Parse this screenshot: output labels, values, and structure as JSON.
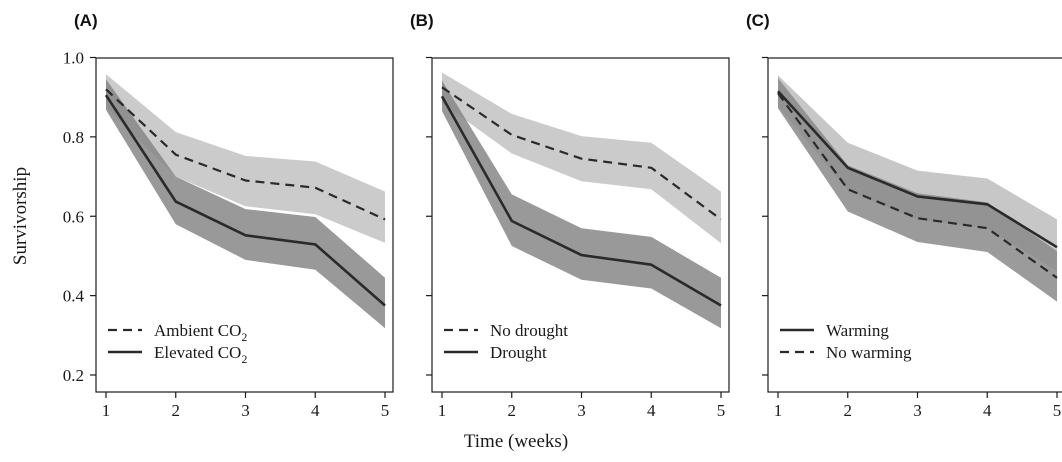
{
  "figure": {
    "ylabel": "Survivorship",
    "xlabel": "Time (weeks)"
  },
  "chart_data": [
    {
      "type": "line",
      "panel_label": "(A)",
      "x": [
        1,
        2,
        3,
        4,
        5
      ],
      "xticks": [
        "1",
        "2",
        "3",
        "4",
        "5"
      ],
      "ylim": [
        0.17,
        1.0
      ],
      "yticks": [
        "0.2",
        "0.4",
        "0.6",
        "0.8",
        "1.0"
      ],
      "legend_position": "bottom-left",
      "series": [
        {
          "name": "Ambient CO₂",
          "style": "dashed",
          "band_color": "#c2c2c2",
          "values": [
            0.92,
            0.755,
            0.69,
            0.672,
            0.592
          ],
          "lower": [
            0.875,
            0.7,
            0.625,
            0.605,
            0.533
          ],
          "upper": [
            0.958,
            0.812,
            0.752,
            0.738,
            0.662
          ]
        },
        {
          "name": "Elevated CO₂",
          "style": "solid",
          "band_color": "#878787",
          "values": [
            0.905,
            0.637,
            0.552,
            0.529,
            0.375
          ],
          "lower": [
            0.868,
            0.58,
            0.49,
            0.465,
            0.318
          ],
          "upper": [
            0.945,
            0.7,
            0.618,
            0.598,
            0.445
          ]
        }
      ]
    },
    {
      "type": "line",
      "panel_label": "(B)",
      "x": [
        1,
        2,
        3,
        4,
        5
      ],
      "xticks": [
        "1",
        "2",
        "3",
        "4",
        "5"
      ],
      "ylim": [
        0.17,
        1.0
      ],
      "yticks": [
        "0.2",
        "0.4",
        "0.6",
        "0.8",
        "1.0"
      ],
      "legend_position": "bottom-left",
      "series": [
        {
          "name": "No drought",
          "style": "dashed",
          "band_color": "#c2c2c2",
          "values": [
            0.925,
            0.805,
            0.745,
            0.722,
            0.592
          ],
          "lower": [
            0.885,
            0.758,
            0.688,
            0.668,
            0.532
          ],
          "upper": [
            0.962,
            0.858,
            0.802,
            0.785,
            0.662
          ]
        },
        {
          "name": "Drought",
          "style": "solid",
          "band_color": "#878787",
          "values": [
            0.902,
            0.588,
            0.502,
            0.478,
            0.375
          ],
          "lower": [
            0.865,
            0.525,
            0.44,
            0.418,
            0.318
          ],
          "upper": [
            0.942,
            0.655,
            0.57,
            0.548,
            0.445
          ]
        }
      ]
    },
    {
      "type": "line",
      "panel_label": "(C)",
      "x": [
        1,
        2,
        3,
        4,
        5
      ],
      "xticks": [
        "1",
        "2",
        "3",
        "4",
        "5"
      ],
      "ylim": [
        0.17,
        1.0
      ],
      "yticks": [
        "0.2",
        "0.4",
        "0.6",
        "0.8",
        "1.0"
      ],
      "legend_position": "bottom-left",
      "series": [
        {
          "name": "Warming",
          "style": "solid",
          "band_color": "#bdbdbd",
          "values": [
            0.915,
            0.722,
            0.65,
            0.63,
            0.522
          ],
          "lower": [
            0.878,
            0.665,
            0.592,
            0.57,
            0.462
          ],
          "upper": [
            0.955,
            0.785,
            0.715,
            0.695,
            0.592
          ]
        },
        {
          "name": "No warming",
          "style": "dashed",
          "band_color": "#8a8a8a",
          "values": [
            0.91,
            0.668,
            0.595,
            0.57,
            0.445
          ],
          "lower": [
            0.872,
            0.612,
            0.535,
            0.51,
            0.385
          ],
          "upper": [
            0.948,
            0.728,
            0.658,
            0.635,
            0.512
          ]
        }
      ]
    }
  ]
}
